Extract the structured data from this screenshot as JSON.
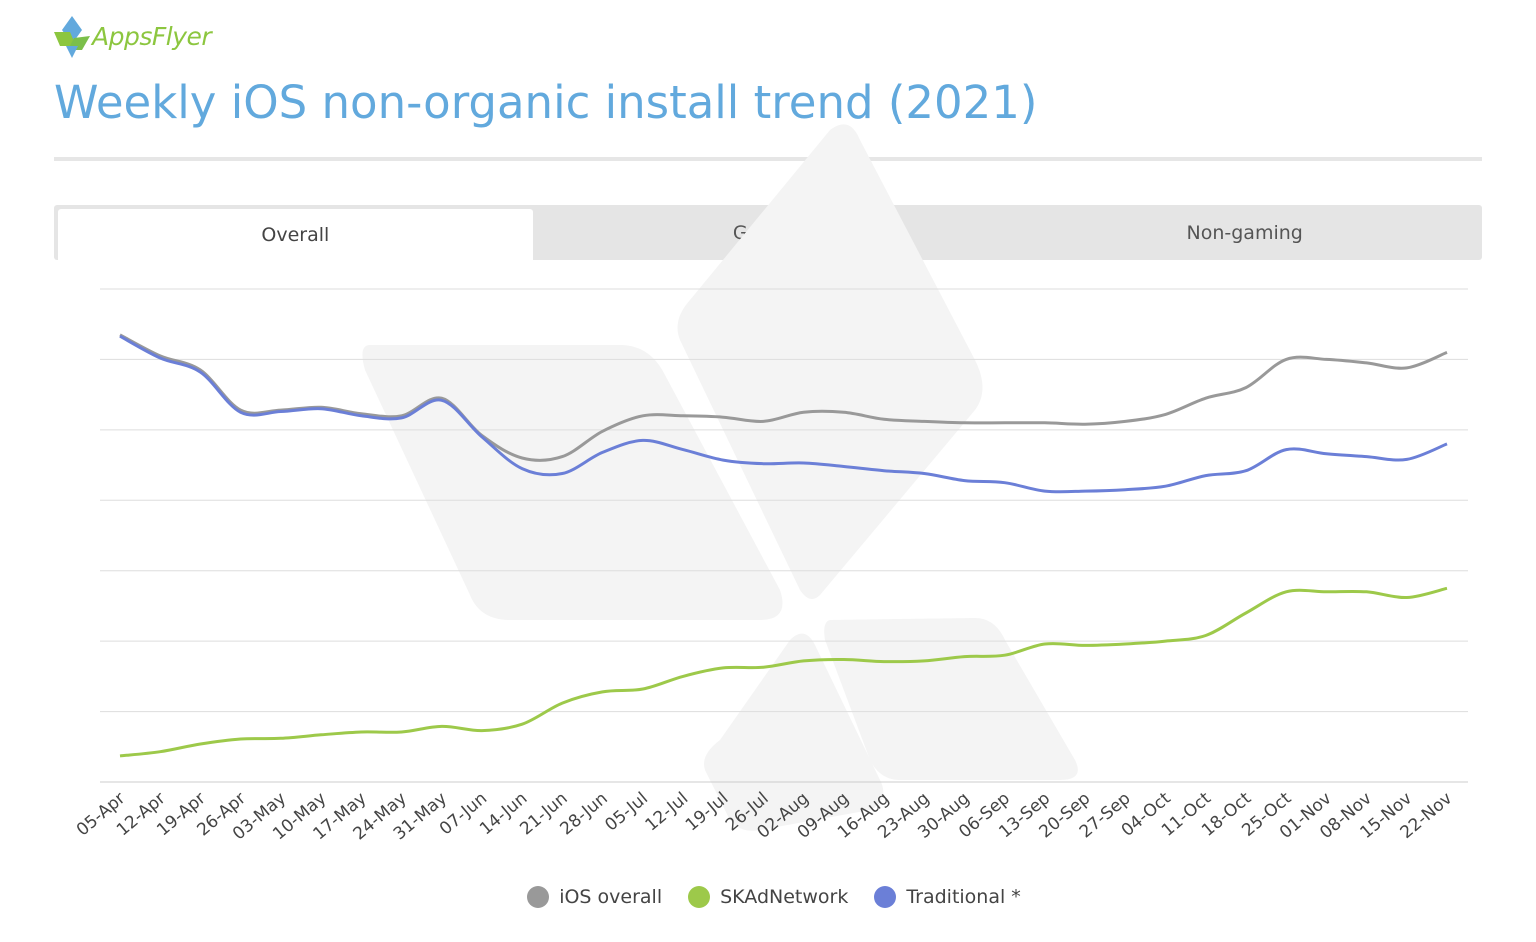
{
  "header": {
    "logo_text": "AppsFlyer",
    "title": "Weekly iOS non-organic install trend (2021)"
  },
  "tabs": [
    {
      "label": "Overall",
      "active": true
    },
    {
      "label": "Gaming",
      "active": false
    },
    {
      "label": "Non-gaming",
      "active": false
    }
  ],
  "colors": {
    "ios_overall": "#999999",
    "skadnetwork": "#9dc94a",
    "traditional": "#6b7fd7",
    "title": "#62a9dd",
    "grid": "#dddddd"
  },
  "chart_data": {
    "type": "line",
    "title": "Weekly iOS non-organic install trend (2021)",
    "xlabel": "",
    "ylabel": "",
    "y_axis_labels_shown": false,
    "ylim": [
      0,
      7
    ],
    "grid": true,
    "legend": "bottom-center",
    "categories": [
      "05-Apr",
      "12-Apr",
      "19-Apr",
      "26-Apr",
      "03-May",
      "10-May",
      "17-May",
      "24-May",
      "31-May",
      "07-Jun",
      "14-Jun",
      "21-Jun",
      "28-Jun",
      "05-Jul",
      "12-Jul",
      "19-Jul",
      "26-Jul",
      "02-Aug",
      "09-Aug",
      "16-Aug",
      "23-Aug",
      "30-Aug",
      "06-Sep",
      "13-Sep",
      "20-Sep",
      "27-Sep",
      "04-Oct",
      "11-Oct",
      "18-Oct",
      "25-Oct",
      "01-Nov",
      "08-Nov",
      "15-Nov",
      "22-Nov"
    ],
    "series": [
      {
        "name": "iOS overall",
        "color": "#999999",
        "values": [
          6.35,
          6.05,
          5.85,
          5.28,
          5.28,
          5.32,
          5.23,
          5.2,
          5.45,
          4.92,
          4.6,
          4.62,
          4.98,
          5.2,
          5.2,
          5.18,
          5.12,
          5.25,
          5.25,
          5.15,
          5.12,
          5.1,
          5.1,
          5.1,
          5.08,
          5.12,
          5.22,
          5.45,
          5.6,
          6.0,
          6.0,
          5.95,
          5.88,
          6.1
        ]
      },
      {
        "name": "SKAdNetwork",
        "color": "#9dc94a",
        "values": [
          0.37,
          0.43,
          0.54,
          0.61,
          0.62,
          0.67,
          0.71,
          0.71,
          0.79,
          0.73,
          0.82,
          1.12,
          1.28,
          1.32,
          1.5,
          1.62,
          1.63,
          1.72,
          1.74,
          1.71,
          1.72,
          1.78,
          1.8,
          1.96,
          1.94,
          1.96,
          2.0,
          2.08,
          2.4,
          2.7,
          2.7,
          2.7,
          2.62,
          2.75
        ]
      },
      {
        "name": "Traditional *",
        "color": "#6b7fd7",
        "values": [
          6.33,
          6.02,
          5.82,
          5.25,
          5.26,
          5.3,
          5.2,
          5.17,
          5.42,
          4.9,
          4.45,
          4.38,
          4.68,
          4.85,
          4.72,
          4.57,
          4.52,
          4.53,
          4.48,
          4.42,
          4.38,
          4.28,
          4.25,
          4.13,
          4.13,
          4.15,
          4.2,
          4.35,
          4.42,
          4.72,
          4.66,
          4.62,
          4.58,
          4.8
        ]
      }
    ]
  }
}
